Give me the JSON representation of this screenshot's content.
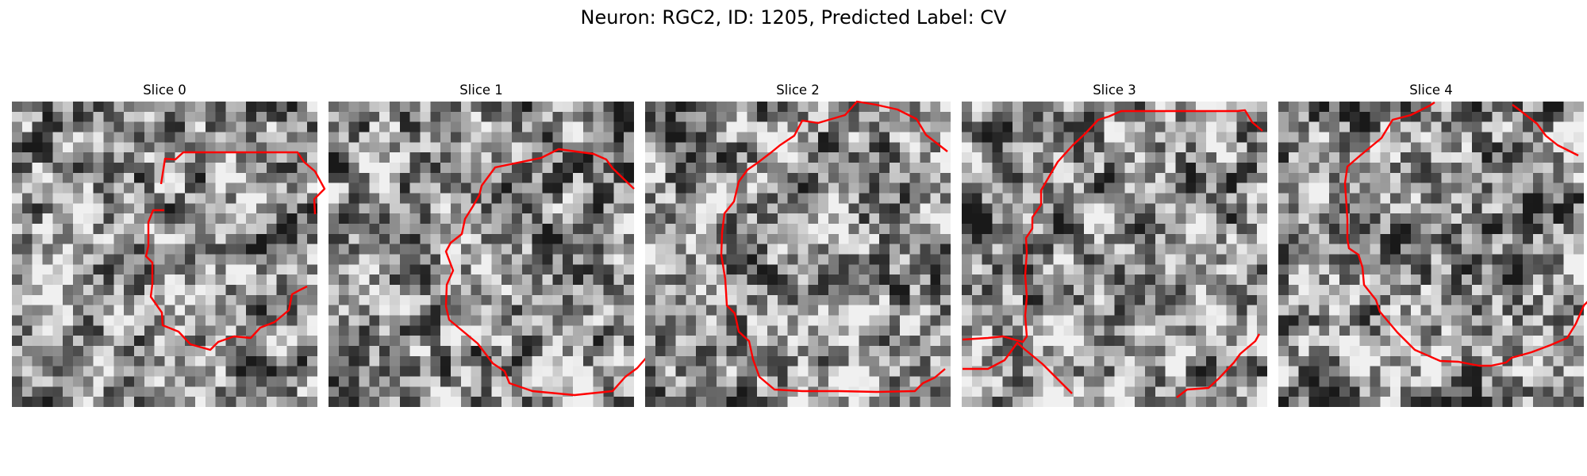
{
  "figure": {
    "title": "Neuron: RGC2, ID: 1205, Predicted Label: CV"
  },
  "colors": {
    "contour": "#ff0000",
    "background": "#ffffff"
  },
  "panels": [
    {
      "title": "Slice 0",
      "seed": 11
    },
    {
      "title": "Slice 1",
      "seed": 23
    },
    {
      "title": "Slice 2",
      "seed": 37
    },
    {
      "title": "Slice 3",
      "seed": 51
    },
    {
      "title": "Slice 4",
      "seed": 67
    }
  ]
}
